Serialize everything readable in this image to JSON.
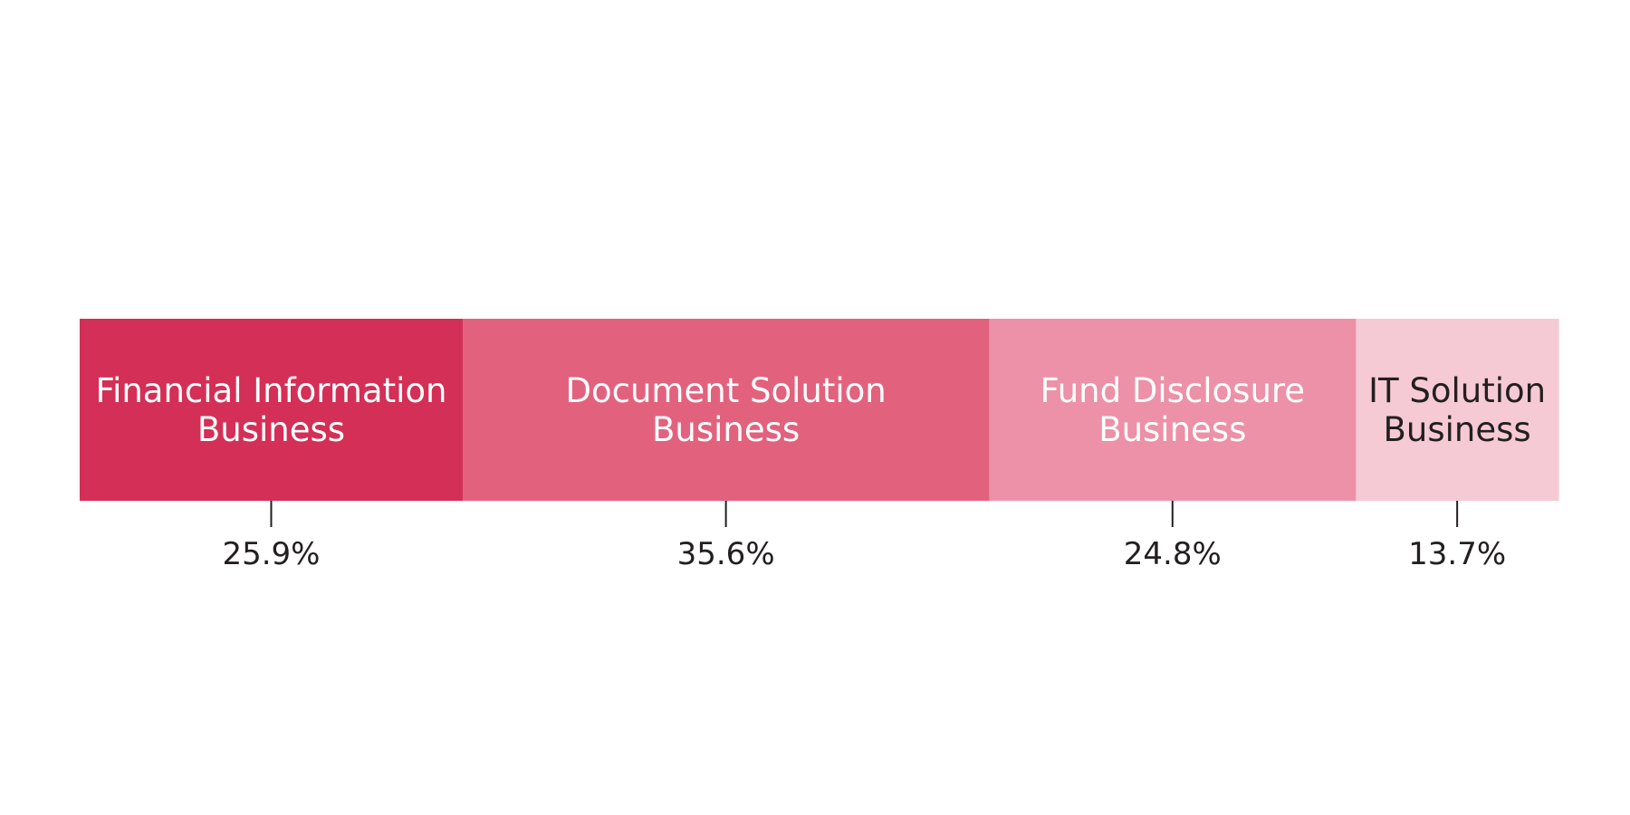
{
  "chart_data": {
    "type": "bar",
    "orientation": "horizontal-stacked-100",
    "unit": "%",
    "segments": [
      {
        "label_lines": [
          "Financial Information",
          "Business"
        ],
        "value": 25.9,
        "value_label": "25.9%",
        "color": "#d42f56",
        "text_color": "#ffffff"
      },
      {
        "label_lines": [
          "Document Solution",
          "Business"
        ],
        "value": 35.6,
        "value_label": "35.6%",
        "color": "#e2627e",
        "text_color": "#ffffff"
      },
      {
        "label_lines": [
          "Fund Disclosure",
          "Business"
        ],
        "value": 24.8,
        "value_label": "24.8%",
        "color": "#ec91a7",
        "text_color": "#ffffff"
      },
      {
        "label_lines": [
          "IT Solution",
          "Business"
        ],
        "value": 13.7,
        "value_label": "13.7%",
        "color": "#f6cad5",
        "text_color": "#231f20"
      }
    ]
  }
}
